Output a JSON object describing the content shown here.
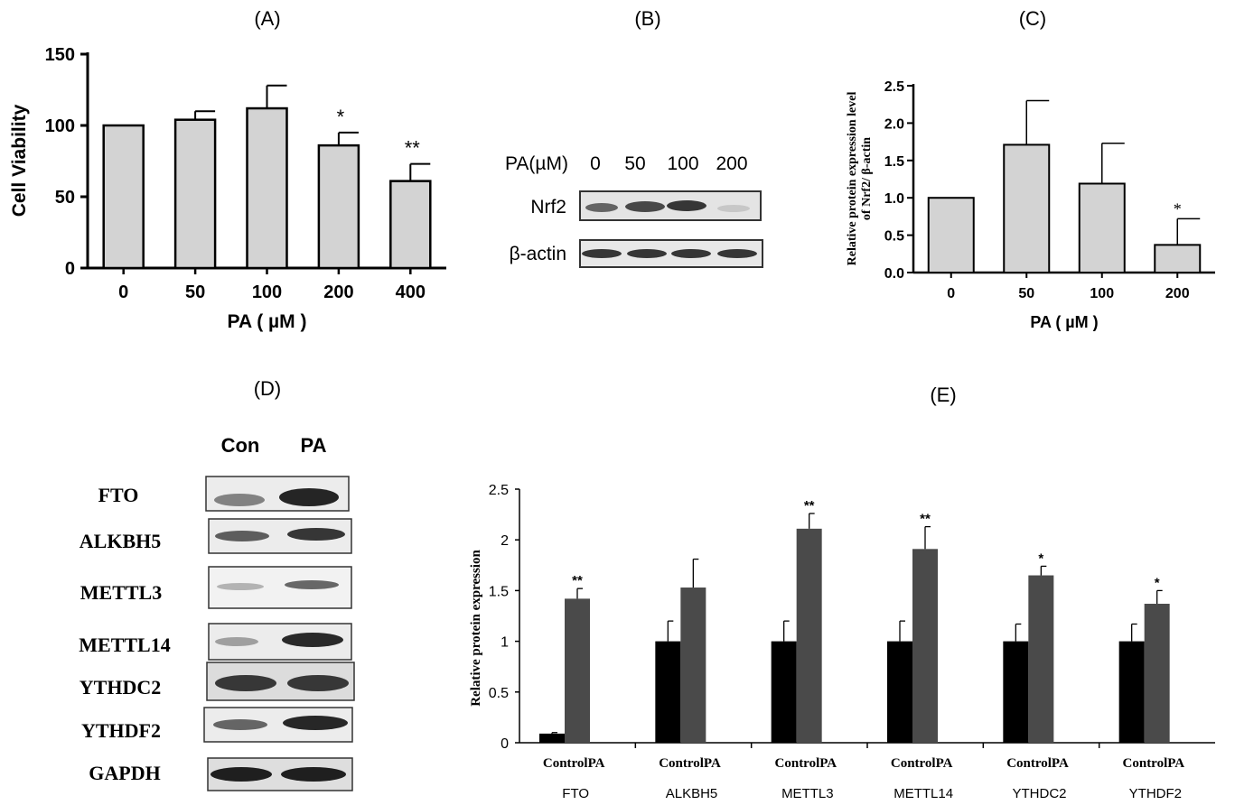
{
  "panels": {
    "a": "(A)",
    "b": "(B)",
    "c": "(C)",
    "d": "(D)",
    "e": "(E)"
  },
  "blot_b": {
    "header_label": "PA(µM)",
    "lanes": [
      "0",
      "50",
      "100",
      "200"
    ],
    "rows": [
      "Nrf2",
      "β-actin"
    ]
  },
  "blot_d": {
    "columns": [
      "Con",
      "PA"
    ],
    "rows": [
      "FTO",
      "ALKBH5",
      "METTL3",
      "METTL14",
      "YTHDC2",
      "YTHDF2",
      "GAPDH"
    ]
  },
  "colors": {
    "bar_gray": "#d3d3d3",
    "bar_black": "#000000",
    "bar_dark": "#4a4a4a"
  },
  "chart_data": [
    {
      "id": "A",
      "type": "bar",
      "ylabel": "Cell Viability",
      "xlabel": "PA ( µM )",
      "categories": [
        "0",
        "50",
        "100",
        "200",
        "400"
      ],
      "values": [
        100,
        104,
        112,
        86,
        61
      ],
      "errors": [
        0,
        6,
        16,
        9,
        12
      ],
      "annotations": [
        "",
        "",
        "",
        "*",
        "**"
      ],
      "ylim": [
        0,
        150
      ],
      "yticks": [
        "0",
        "50",
        "100",
        "150"
      ]
    },
    {
      "id": "C",
      "type": "bar",
      "ylabel_lines": [
        "Relative protein expression level",
        "of Nrf2/ β-actin"
      ],
      "xlabel": "PA ( µM )",
      "categories": [
        "0",
        "50",
        "100",
        "200"
      ],
      "values": [
        1.0,
        1.71,
        1.19,
        0.37
      ],
      "errors": [
        0,
        0.59,
        0.54,
        0.35
      ],
      "annotations": [
        "",
        "",
        "",
        "*"
      ],
      "ylim": [
        0,
        2.5
      ],
      "yticks": [
        "0.0",
        "0.5",
        "1.0",
        "1.5",
        "2.0",
        "2.5"
      ]
    },
    {
      "id": "E",
      "type": "bar",
      "ylabel": "Relative protein expression",
      "groups": [
        "FTO",
        "ALKBH5",
        "METTL3",
        "METTL14",
        "YTHDC2",
        "YTHDF2"
      ],
      "group_sublabel": "ControlPA",
      "series": [
        {
          "values": [
            0.09,
            1.0,
            1.0,
            1.0,
            1.0,
            1.0
          ],
          "errors": [
            0.01,
            0.2,
            0.2,
            0.2,
            0.17,
            0.17
          ]
        },
        {
          "values": [
            1.42,
            1.53,
            2.11,
            1.91,
            1.65,
            1.37
          ],
          "errors": [
            0.1,
            0.28,
            0.15,
            0.22,
            0.09,
            0.13
          ]
        }
      ],
      "annotations": [
        "**",
        "",
        "**",
        "**",
        "*",
        "*"
      ],
      "ylim": [
        0,
        2.5
      ],
      "yticks": [
        "0",
        "0.5",
        "1",
        "1.5",
        "2",
        "2.5"
      ]
    }
  ]
}
